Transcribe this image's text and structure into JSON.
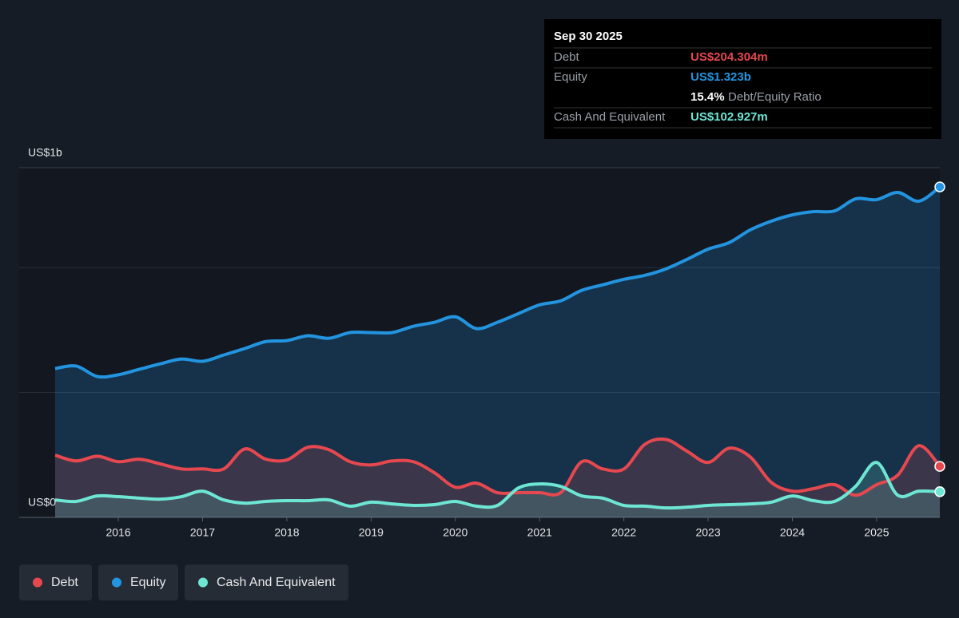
{
  "chart_data": {
    "type": "line",
    "x": [
      2015.25,
      2015.5,
      2015.75,
      2016.0,
      2016.25,
      2016.5,
      2016.75,
      2017.0,
      2017.25,
      2017.5,
      2017.75,
      2018.0,
      2018.25,
      2018.5,
      2018.75,
      2019.0,
      2019.25,
      2019.5,
      2019.75,
      2020.0,
      2020.25,
      2020.5,
      2020.75,
      2021.0,
      2021.25,
      2021.5,
      2021.75,
      2022.0,
      2022.25,
      2022.5,
      2022.75,
      2023.0,
      2023.25,
      2023.5,
      2023.75,
      2024.0,
      2024.25,
      2024.5,
      2024.75,
      2025.0,
      2025.25,
      2025.5,
      2025.75
    ],
    "xlim": [
      2015.25,
      2025.75
    ],
    "xticks": [
      2016,
      2017,
      2018,
      2019,
      2020,
      2021,
      2022,
      2023,
      2024,
      2025
    ],
    "ylim": [
      0,
      1400
    ],
    "yticks": [
      {
        "value": 0,
        "label": "US$0"
      },
      {
        "value": 1400,
        "label": "US$1b"
      }
    ],
    "gridlines": [
      500,
      1000
    ],
    "series": [
      {
        "name": "Debt",
        "color": "#e5484f",
        "values": [
          249,
          226,
          245,
          223,
          233,
          214,
          194,
          194,
          194,
          274,
          233,
          230,
          281,
          271,
          223,
          210,
          226,
          223,
          179,
          121,
          137,
          99,
          99,
          99,
          99,
          223,
          194,
          194,
          293,
          312,
          265,
          220,
          277,
          242,
          140,
          105,
          115,
          131,
          89,
          131,
          169,
          287,
          204.304
        ]
      },
      {
        "name": "Equity",
        "color": "#2394df",
        "values": [
          596,
          606,
          564,
          571,
          593,
          615,
          634,
          625,
          650,
          676,
          704,
          708,
          727,
          717,
          740,
          740,
          740,
          765,
          781,
          803,
          756,
          781,
          816,
          851,
          867,
          909,
          931,
          953,
          969,
          995,
          1033,
          1074,
          1100,
          1151,
          1186,
          1211,
          1224,
          1227,
          1275,
          1272,
          1301,
          1266,
          1323
        ]
      },
      {
        "name": "Cash And Equivalent",
        "color": "#6ee6d4",
        "values": [
          70,
          64,
          86,
          83,
          77,
          73,
          83,
          105,
          70,
          57,
          64,
          67,
          67,
          70,
          45,
          61,
          54,
          48,
          51,
          64,
          45,
          48,
          118,
          134,
          124,
          86,
          77,
          48,
          45,
          38,
          41,
          48,
          51,
          54,
          61,
          86,
          67,
          64,
          124,
          220,
          89,
          105,
          102.927
        ]
      }
    ],
    "tooltip": {
      "date": "Sep 30 2025",
      "debt_value": "US$204.304m",
      "equity_value": "US$1.323b",
      "ratio_value": "15.4%",
      "ratio_label": "Debt/Equity Ratio",
      "cash_value": "US$102.927m"
    }
  }
}
